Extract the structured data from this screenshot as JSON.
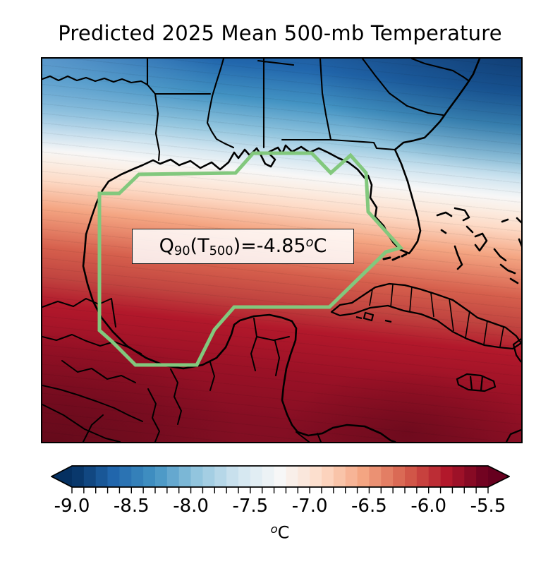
{
  "figure": {
    "title": "Predicted 2025 Mean 500-mb Temperature",
    "background_color": "#ffffff"
  },
  "map": {
    "border_color": "#000000",
    "coastline_color": "#000000",
    "region_outline_color": "#82c87d",
    "annotation": {
      "prefix": "Q",
      "prefix_sub": "90",
      "mid": "(T",
      "mid_sub": "500",
      "value": ")=-4.85",
      "deg": "o",
      "unit": "C"
    }
  },
  "colorbar": {
    "tick_labels": [
      "-9.0",
      "-8.5",
      "-8.0",
      "-7.5",
      "-7.0",
      "-6.5",
      "-6.0",
      "-5.5"
    ],
    "minor_ticks_per_major": 5,
    "n_segments": 35,
    "under_color": "#053061",
    "over_color": "#67001f",
    "outline_color": "#000000",
    "unit_sup": "o",
    "unit": "C",
    "colormap_stops": [
      [
        0.0,
        "#053061"
      ],
      [
        0.1,
        "#2166ac"
      ],
      [
        0.2,
        "#4393c3"
      ],
      [
        0.3,
        "#92c5de"
      ],
      [
        0.4,
        "#d1e5f0"
      ],
      [
        0.5,
        "#f7f7f7"
      ],
      [
        0.6,
        "#fddbc7"
      ],
      [
        0.7,
        "#f4a582"
      ],
      [
        0.8,
        "#d6604d"
      ],
      [
        0.9,
        "#b2182b"
      ],
      [
        1.0,
        "#67001f"
      ]
    ]
  },
  "chart_data": {
    "type": "heatmap",
    "title": "Predicted 2025 Mean 500-mb Temperature",
    "variable": "Predicted 2025 mean 500-mb temperature",
    "units": "°C",
    "region": "Gulf of Mexico and surroundings (US Gulf Coast states, Mexico, Yucatan, Cuba, Jamaica, Bahamas)",
    "colormap": "RdBu_r",
    "colorbar_range": [
      -9.0,
      -5.5
    ],
    "colorbar_ticks": [
      -9.0,
      -8.5,
      -8.0,
      -7.5,
      -7.0,
      -6.5,
      -6.0,
      -5.5
    ],
    "colorbar_minor_tick_interval": 0.1,
    "colorbar_extend": "both",
    "field_description": "Temperature increases from north to south: below -9.0 °C (dark blue) over the northern US states, near -7.3 °C (white band) along the northern Gulf coast, and above -5.5 °C (dark red) over southern Mexico and the Caribbean; isotherms run roughly east-west, dipping slightly southward toward the east",
    "highlighted_region": {
      "shape": "polygon outline",
      "outline_color": "#82c87d",
      "area": "Gulf of Mexico basin",
      "label": "Q90(T500)=-4.85°C"
    },
    "annotation": {
      "text": "Q90(T500)=-4.85°C",
      "quantile": 0.9,
      "value_c": -4.85
    }
  }
}
